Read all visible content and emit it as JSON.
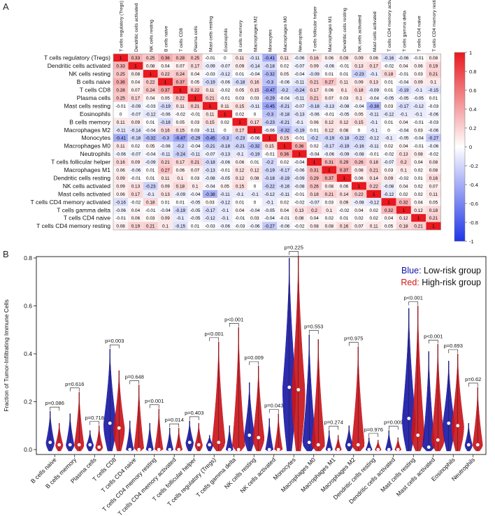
{
  "panel_labels": {
    "a": "A",
    "b": "B"
  },
  "chart_data": [
    {
      "type": "heatmap",
      "title": "",
      "cells": [
        "T cells regulatory (Tregs)",
        "Dendritic cells activated",
        "NK cells resting",
        "B cells naive",
        "T cells CD8",
        "Plasma cells",
        "Mast cells resting",
        "Eosinophils",
        "B cells memory",
        "Macrophages M2",
        "Monocytes",
        "Macrophages M0",
        "Neutrophils",
        "T cells follicular helper",
        "Macrophages M1",
        "Dendritic cells resting",
        "NK cells activated",
        "Mast cells activated",
        "T cells CD4 memory activated",
        "T cells gamma delta",
        "T cells CD4 naive",
        "T cells CD4 memory resting"
      ],
      "matrix": [
        [
          1,
          0.33,
          0.25,
          0.36,
          0.28,
          0.25,
          -0.01,
          0,
          0.11,
          -0.11,
          -0.41,
          0.11,
          -0.06,
          0.16,
          0.06,
          0.09,
          0.09,
          0.06,
          -0.16,
          -0.06,
          -0.01,
          0.08
        ],
        [
          0.33,
          1,
          0.08,
          0.04,
          0.07,
          0.17,
          -0.09,
          -0.07,
          0.09,
          -0.14,
          -0.18,
          0.02,
          -0.07,
          0.09,
          -0.06,
          -0.01,
          0.13,
          0.17,
          -0.02,
          0.04,
          0.06,
          0.19
        ],
        [
          0.25,
          0.08,
          1,
          0.22,
          0.24,
          0.04,
          -0.03,
          -0.12,
          0.01,
          -0.04,
          -0.32,
          0.05,
          -0.04,
          -0.09,
          0.01,
          0.01,
          -0.23,
          -0.1,
          0.18,
          -0.01,
          0.03,
          0.21
        ],
        [
          0.36,
          0.04,
          0.22,
          1,
          0.37,
          0.05,
          -0.19,
          -0.06,
          -0.18,
          0.16,
          -0.3,
          -0.06,
          -0.11,
          0.21,
          0.27,
          0.11,
          0.09,
          0.13,
          0.01,
          -0.04,
          0.09,
          0.1
        ],
        [
          0.28,
          0.07,
          0.24,
          0.37,
          1,
          0.22,
          0.11,
          -0.02,
          0.05,
          0.15,
          -0.47,
          -0.2,
          -0.24,
          0.17,
          0.06,
          0.1,
          0.18,
          -0.09,
          0.01,
          -0.19,
          -0.1,
          -0.15
        ],
        [
          0.25,
          0.17,
          0.04,
          0.05,
          0.22,
          1,
          0.21,
          -0.01,
          0.03,
          0.03,
          -0.29,
          -0.04,
          -0.11,
          0.21,
          0.07,
          0.03,
          0.1,
          -0.04,
          -0.05,
          -0.05,
          -0.05,
          0.01
        ],
        [
          -0.01,
          -0.09,
          -0.03,
          -0.19,
          0.11,
          0.21,
          1,
          0.11,
          0.15,
          -0.11,
          -0.45,
          -0.21,
          -0.07,
          -0.18,
          -0.13,
          -0.08,
          -0.04,
          -0.38,
          0.03,
          -0.17,
          -0.12,
          -0.03
        ],
        [
          0,
          -0.07,
          -0.12,
          -0.06,
          -0.02,
          -0.01,
          0.11,
          1,
          0.02,
          0,
          -0.3,
          -0.18,
          -0.13,
          -0.06,
          -0.01,
          -0.05,
          0.05,
          -0.11,
          -0.12,
          -0.1,
          -0.1,
          -0.06
        ],
        [
          0.11,
          0.09,
          0.01,
          -0.18,
          0.05,
          0.03,
          0.15,
          0.02,
          1,
          0.17,
          -0.23,
          -0.21,
          -0.1,
          0.06,
          0.12,
          0.12,
          0.15,
          -0.1,
          0.01,
          0.04,
          -0.01,
          -0.03
        ],
        [
          -0.11,
          -0.14,
          -0.04,
          0.16,
          0.15,
          0.03,
          -0.11,
          0,
          0.17,
          1,
          -0.06,
          -0.32,
          -0.19,
          0.01,
          0.12,
          0.08,
          0,
          -0.1,
          0,
          -0.04,
          0.03,
          -0.06
        ],
        [
          -0.41,
          -0.18,
          -0.32,
          -0.3,
          -0.47,
          -0.29,
          -0.45,
          -0.3,
          -0.23,
          -0.06,
          1,
          0.15,
          -0.01,
          -0.2,
          -0.19,
          -0.18,
          -0.22,
          -0.12,
          -0.1,
          -0.05,
          -0.04,
          -0.27
        ],
        [
          0.11,
          0.02,
          0.05,
          -0.06,
          -0.2,
          -0.04,
          -0.21,
          -0.18,
          -0.21,
          -0.32,
          0.15,
          1,
          0.36,
          0.02,
          -0.17,
          -0.19,
          -0.16,
          -0.11,
          0.02,
          0.04,
          -0.01,
          -0.06
        ],
        [
          -0.06,
          -0.07,
          -0.04,
          -0.11,
          -0.24,
          -0.11,
          -0.07,
          -0.13,
          -0.1,
          -0.19,
          -0.01,
          0.36,
          1,
          -0.04,
          -0.06,
          -0.09,
          -0.08,
          -0.01,
          -0.02,
          0.13,
          0.08,
          -0.02
        ],
        [
          0.16,
          0.09,
          -0.09,
          0.21,
          0.17,
          0.21,
          -0.18,
          -0.06,
          0.06,
          0.01,
          -0.2,
          0.02,
          -0.04,
          1,
          0.31,
          0.29,
          0.26,
          0.18,
          -0.07,
          0.2,
          0.04,
          0.08
        ],
        [
          0.06,
          -0.06,
          0.01,
          0.27,
          0.06,
          0.07,
          -0.13,
          -0.01,
          0.12,
          0.12,
          -0.19,
          -0.17,
          -0.06,
          0.31,
          1,
          0.37,
          0.08,
          0.21,
          0.03,
          0.1,
          0.02,
          0.08
        ],
        [
          0.09,
          -0.01,
          0.01,
          0.11,
          0.1,
          0.03,
          -0.08,
          -0.05,
          0.12,
          0.08,
          -0.18,
          -0.19,
          -0.09,
          0.29,
          0.37,
          1,
          0.06,
          0.14,
          0.09,
          -0.02,
          0.01,
          0.16
        ],
        [
          0.09,
          0.13,
          -0.23,
          0.09,
          0.18,
          0.1,
          -0.04,
          0.05,
          0.15,
          0,
          -0.22,
          -0.16,
          -0.08,
          0.26,
          0.08,
          0.06,
          1,
          0.22,
          -0.08,
          0.04,
          0.02,
          0.07
        ],
        [
          0.06,
          0.17,
          -0.1,
          0.13,
          -0.09,
          -0.04,
          -0.38,
          -0.11,
          -0.1,
          -0.1,
          -0.12,
          -0.11,
          -0.01,
          0.18,
          0.21,
          0.14,
          0.22,
          1,
          -0.12,
          0.02,
          0.02,
          0.11
        ],
        [
          -0.16,
          -0.02,
          0.18,
          0.01,
          0.01,
          -0.05,
          0.03,
          -0.12,
          0.01,
          0,
          -0.1,
          0.02,
          -0.02,
          -0.07,
          0.03,
          0.09,
          -0.08,
          -0.12,
          1,
          0.32,
          0.04,
          0.05
        ],
        [
          -0.06,
          0.04,
          -0.01,
          -0.04,
          -0.19,
          -0.05,
          -0.17,
          -0.1,
          0.04,
          -0.04,
          -0.05,
          0.04,
          0.13,
          0.2,
          0.1,
          -0.02,
          0.04,
          0.02,
          0.32,
          1,
          0.12,
          0.18
        ],
        [
          -0.01,
          0.06,
          0.03,
          0.09,
          -0.1,
          -0.05,
          -0.12,
          -0.1,
          -0.01,
          0.03,
          -0.04,
          -0.01,
          0.08,
          0.04,
          0.02,
          0.01,
          0.02,
          0.02,
          0.04,
          0.12,
          1,
          0.21
        ],
        [
          0.08,
          0.19,
          0.21,
          0.1,
          -0.15,
          0.01,
          -0.03,
          -0.06,
          -0.03,
          -0.06,
          -0.27,
          -0.06,
          -0.02,
          0.08,
          0.08,
          0.16,
          0.07,
          0.11,
          0.05,
          0.18,
          0.21,
          1
        ]
      ],
      "colorbar_ticks": [
        "1",
        "0.8",
        "0.6",
        "0.4",
        "0.2",
        "0",
        "-0.2",
        "-0.4",
        "-0.6",
        "-0.8",
        "-1"
      ],
      "colors": {
        "negative": "#1f35e8",
        "neutral": "#ffffff",
        "positive": "#e8191f"
      }
    },
    {
      "type": "violin",
      "title": "",
      "ylabel": "Fraction of Tumor-Infiltrating Immune Cells",
      "ylim": [
        0,
        0.8
      ],
      "yticks": [
        "0.0",
        "0.2",
        "0.4",
        "0.6",
        "0.8"
      ],
      "legend": {
        "position": "top-right",
        "entries": [
          {
            "label": "Blue:",
            "text": "Low-risk group",
            "color": "#1313a8"
          },
          {
            "label": "Red:",
            "text": "High-risk group",
            "color": "#d41515"
          }
        ]
      },
      "group_colors": {
        "low": "#1a1aa6",
        "high": "#c8161c"
      },
      "categories": [
        "B cells naive",
        "B cells memory",
        "Plasma cells",
        "T cells CD8",
        "T cells CD4 naive",
        "T cells CD4 memory resting",
        "T cells CD4 memory activated",
        "T cells follicular helper",
        "T cells regulatory (Tregs)",
        "T cells gamma delta",
        "NK cells resting",
        "NK cells activated",
        "Monocytes",
        "Macrophages M0",
        "Macrophages M1",
        "Macrophages M2",
        "Dendritic cells resting",
        "Dendritic cells activated",
        "Mast cells resting",
        "Mast cells activated",
        "Eosinophils",
        "Neutrophils"
      ],
      "pvalues": [
        "p=0.086",
        "p=0.616",
        "p=0.718",
        "p=0.003",
        "p=0.648",
        "p<0.001",
        "p=0.014",
        "p=0.403",
        "p<0.001",
        "p<0.001",
        "p=0.009",
        "p=0.043",
        "p=0.225",
        "p=0.553",
        "p=0.274",
        "p=0.975",
        "p=0.976",
        "p=0.009",
        "p<0.001",
        "p<0.001",
        "p=0.693",
        "p=0.62"
      ],
      "low": {
        "max": [
          0.16,
          0.15,
          0.08,
          0.42,
          0.12,
          0.11,
          0.09,
          0.12,
          0.06,
          0.1,
          0.28,
          0.13,
          0.8,
          0.48,
          0.08,
          0.1,
          0.05,
          0.08,
          0.59,
          0.41,
          0.37,
          0.11
        ],
        "median": [
          0.03,
          0.02,
          0.02,
          0.11,
          0.0,
          0.0,
          0.0,
          0.03,
          0.02,
          0.0,
          0.06,
          0.0,
          0.26,
          0.03,
          0.0,
          0.02,
          0.0,
          0.0,
          0.13,
          0.01,
          0.11,
          0.02
        ]
      },
      "high": {
        "max": [
          0.11,
          0.24,
          0.1,
          0.33,
          0.27,
          0.17,
          0.09,
          0.11,
          0.45,
          0.51,
          0.35,
          0.15,
          0.81,
          0.46,
          0.06,
          0.43,
          0.04,
          0.05,
          0.6,
          0.44,
          0.4,
          0.26
        ],
        "median": [
          0.02,
          0.02,
          0.01,
          0.09,
          0.0,
          0.0,
          0.0,
          0.02,
          0.03,
          0.0,
          0.05,
          0.0,
          0.25,
          0.02,
          0.0,
          0.02,
          0.0,
          0.0,
          0.06,
          0.04,
          0.1,
          0.02
        ]
      }
    }
  ]
}
